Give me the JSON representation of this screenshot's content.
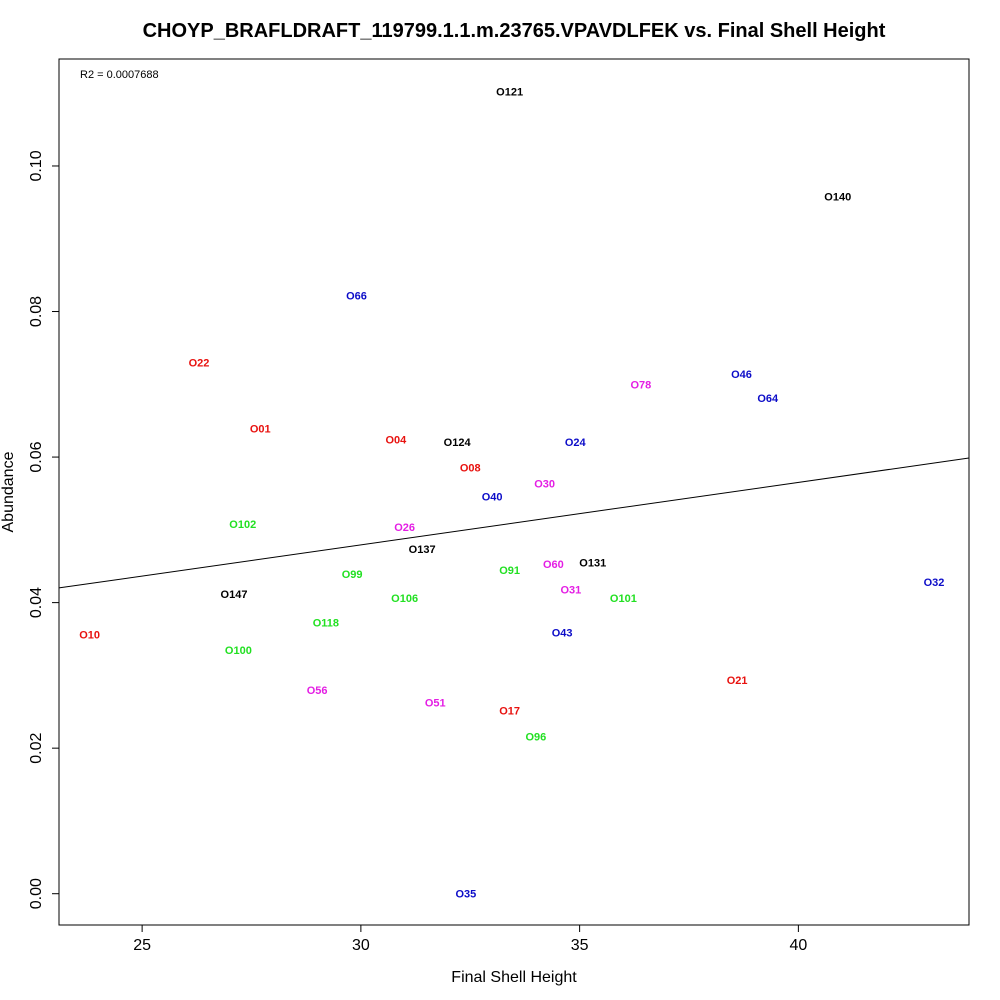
{
  "chart_data": {
    "type": "scatter",
    "title": "CHOYP_BRAFLDRAFT_119799.1.1.m.23765.VPAVDLFEK vs. Final Shell Height",
    "xlabel": "Final Shell Height",
    "ylabel": "Abundance",
    "annotation": "R2 = 0.0007688",
    "xlim": [
      23.1,
      43.9
    ],
    "ylim": [
      -0.0043,
      0.1147
    ],
    "xticks": [
      25,
      30,
      35,
      40
    ],
    "yticks": [
      0.0,
      0.02,
      0.04,
      0.06,
      0.08,
      0.1
    ],
    "ytick_labels": [
      "0.00",
      "0.02",
      "0.04",
      "0.06",
      "0.08",
      "0.10"
    ],
    "grid": false,
    "regression_line": {
      "intercept": 0.0222,
      "slope": 0.000858
    },
    "colors": {
      "red": "#e8120f",
      "green": "#22e022",
      "blue": "#0c0cc8",
      "magenta": "#e41ee4",
      "black": "#000000"
    },
    "points": [
      {
        "label": "O121",
        "x": 33.4,
        "y": 0.1102,
        "color": "black"
      },
      {
        "label": "O140",
        "x": 40.9,
        "y": 0.0958,
        "color": "black"
      },
      {
        "label": "O66",
        "x": 29.9,
        "y": 0.0822,
        "color": "blue"
      },
      {
        "label": "O22",
        "x": 26.3,
        "y": 0.073,
        "color": "red"
      },
      {
        "label": "O78",
        "x": 36.4,
        "y": 0.07,
        "color": "magenta"
      },
      {
        "label": "O46",
        "x": 38.7,
        "y": 0.0714,
        "color": "blue"
      },
      {
        "label": "O64",
        "x": 39.3,
        "y": 0.0681,
        "color": "blue"
      },
      {
        "label": "O01",
        "x": 27.7,
        "y": 0.0639,
        "color": "red"
      },
      {
        "label": "O04",
        "x": 30.8,
        "y": 0.0624,
        "color": "red"
      },
      {
        "label": "O124",
        "x": 32.2,
        "y": 0.0621,
        "color": "black"
      },
      {
        "label": "O24",
        "x": 34.9,
        "y": 0.0621,
        "color": "blue"
      },
      {
        "label": "O08",
        "x": 32.5,
        "y": 0.0586,
        "color": "red"
      },
      {
        "label": "O30",
        "x": 34.2,
        "y": 0.0564,
        "color": "magenta"
      },
      {
        "label": "O40",
        "x": 33.0,
        "y": 0.0546,
        "color": "blue"
      },
      {
        "label": "O102",
        "x": 27.3,
        "y": 0.0508,
        "color": "green"
      },
      {
        "label": "O26",
        "x": 31.0,
        "y": 0.0504,
        "color": "magenta"
      },
      {
        "label": "O137",
        "x": 31.4,
        "y": 0.0474,
        "color": "black"
      },
      {
        "label": "O131",
        "x": 35.3,
        "y": 0.0455,
        "color": "black"
      },
      {
        "label": "O60",
        "x": 34.4,
        "y": 0.0453,
        "color": "magenta"
      },
      {
        "label": "O91",
        "x": 33.4,
        "y": 0.0445,
        "color": "green"
      },
      {
        "label": "O99",
        "x": 29.8,
        "y": 0.0439,
        "color": "green"
      },
      {
        "label": "O32",
        "x": 43.1,
        "y": 0.0428,
        "color": "blue"
      },
      {
        "label": "O31",
        "x": 34.8,
        "y": 0.0418,
        "color": "magenta"
      },
      {
        "label": "O147",
        "x": 27.1,
        "y": 0.0412,
        "color": "black"
      },
      {
        "label": "O106",
        "x": 31.0,
        "y": 0.0406,
        "color": "green"
      },
      {
        "label": "O101",
        "x": 36.0,
        "y": 0.0406,
        "color": "green"
      },
      {
        "label": "O118",
        "x": 29.2,
        "y": 0.0373,
        "color": "green"
      },
      {
        "label": "O43",
        "x": 34.6,
        "y": 0.0359,
        "color": "blue"
      },
      {
        "label": "O10",
        "x": 23.8,
        "y": 0.0356,
        "color": "red"
      },
      {
        "label": "O100",
        "x": 27.2,
        "y": 0.0335,
        "color": "green"
      },
      {
        "label": "O21",
        "x": 38.6,
        "y": 0.0294,
        "color": "red"
      },
      {
        "label": "O56",
        "x": 29.0,
        "y": 0.028,
        "color": "magenta"
      },
      {
        "label": "O51",
        "x": 31.7,
        "y": 0.0263,
        "color": "magenta"
      },
      {
        "label": "O17",
        "x": 33.4,
        "y": 0.0252,
        "color": "red"
      },
      {
        "label": "O96",
        "x": 34.0,
        "y": 0.0216,
        "color": "green"
      },
      {
        "label": "O35",
        "x": 32.4,
        "y": 0.0,
        "color": "blue"
      }
    ]
  }
}
